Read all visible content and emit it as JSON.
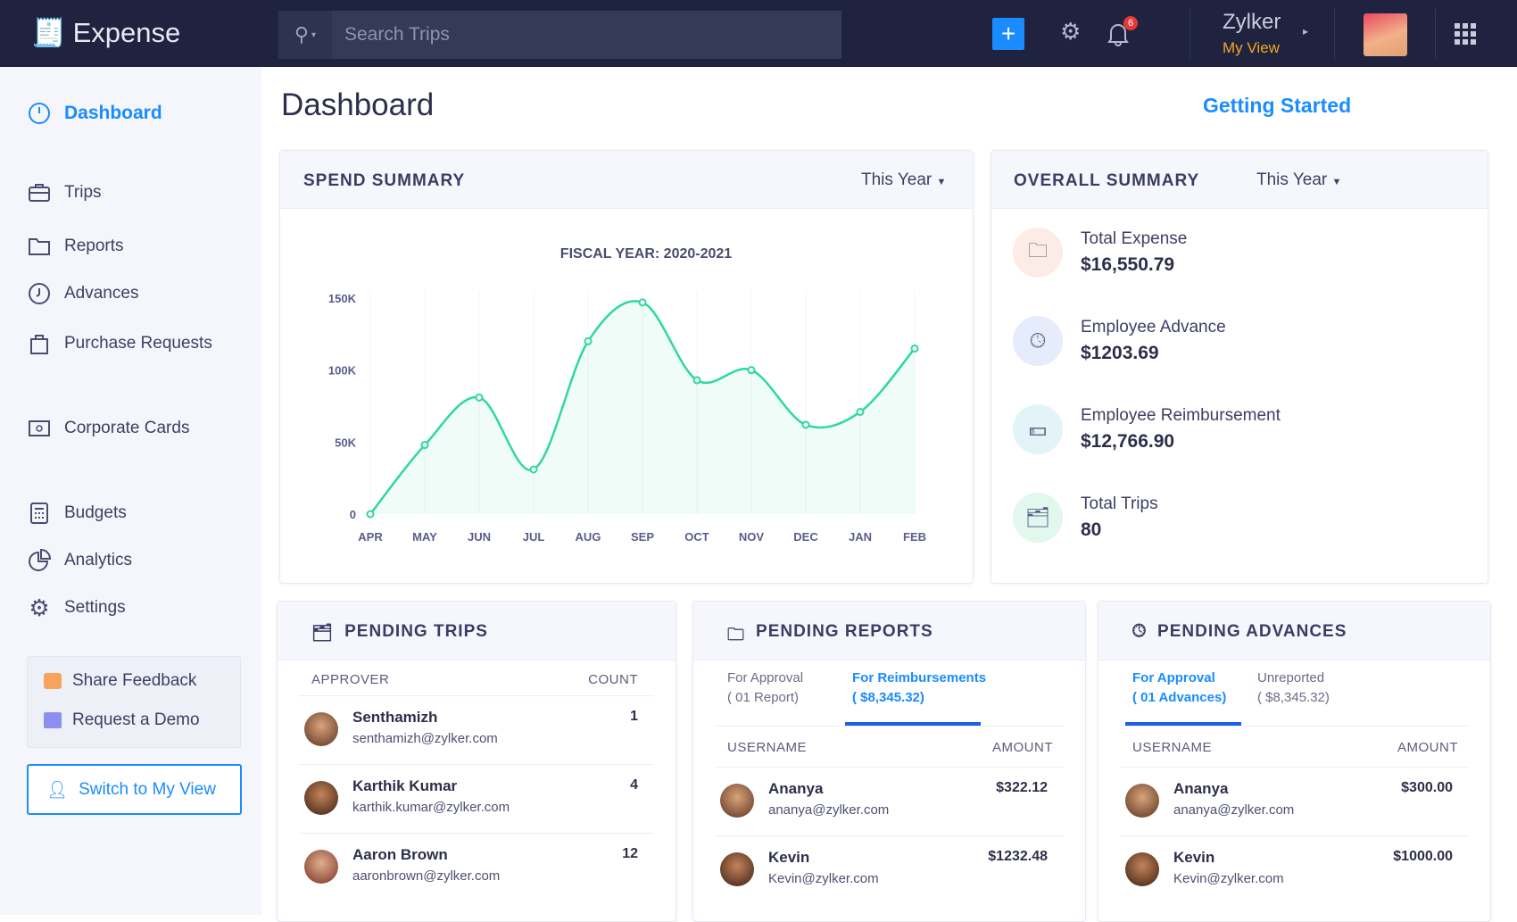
{
  "header": {
    "app_name": "Expense",
    "search_placeholder": "Search Trips",
    "notification_count": "6",
    "org_name": "Zylker",
    "view_label": "My View"
  },
  "sidebar": {
    "items": [
      {
        "label": "Dashboard",
        "icon": "dashboard-icon"
      },
      {
        "label": "Trips",
        "icon": "briefcase-icon"
      },
      {
        "label": "Reports",
        "icon": "folder-icon"
      },
      {
        "label": "Advances",
        "icon": "clock-icon"
      },
      {
        "label": "Purchase Requests",
        "icon": "bag-icon"
      },
      {
        "label": "Corporate Cards",
        "icon": "card-icon"
      },
      {
        "label": "Budgets",
        "icon": "calculator-icon"
      },
      {
        "label": "Analytics",
        "icon": "pie-chart-icon"
      },
      {
        "label": "Settings",
        "icon": "gear-icon"
      }
    ],
    "share_feedback": "Share Feedback",
    "request_demo": "Request a Demo",
    "switch_view": "Switch to My View"
  },
  "main": {
    "title": "Dashboard",
    "getting_started": "Getting Started"
  },
  "spend_summary": {
    "title": "SPEND SUMMARY",
    "period": "This Year"
  },
  "chart_data": {
    "type": "area",
    "title": "FISCAL YEAR: 2020-2021",
    "categories": [
      "APR",
      "MAY",
      "JUN",
      "JUL",
      "AUG",
      "SEP",
      "OCT",
      "NOV",
      "DEC",
      "JAN",
      "FEB"
    ],
    "values": [
      0,
      48000,
      81000,
      31000,
      120000,
      147000,
      93000,
      100000,
      62000,
      71000,
      115000
    ],
    "ylim": [
      0,
      150000
    ],
    "yticks": [
      "0",
      "50K",
      "100K",
      "150K"
    ],
    "ytick_values": [
      0,
      50000,
      100000,
      150000
    ],
    "color": "#2ed8a0",
    "grid": true
  },
  "overall_summary": {
    "title": "OVERALL SUMMARY",
    "period": "This Year",
    "items": [
      {
        "label": "Total Expense",
        "value": "$16,550.79",
        "icon": "folder-icon",
        "bg": "#fdece6"
      },
      {
        "label": "Employee Advance",
        "value": "$1203.69",
        "icon": "clock-icon",
        "bg": "#e6ecfb"
      },
      {
        "label": "Employee Reimbursement",
        "value": "$12,766.90",
        "icon": "cash-icon",
        "bg": "#e2f4f8"
      },
      {
        "label": "Total Trips",
        "value": "80",
        "icon": "briefcase-icon",
        "bg": "#e2f7ee"
      }
    ]
  },
  "pending_trips": {
    "title": "PENDING TRIPS",
    "col1": "APPROVER",
    "col2": "COUNT",
    "rows": [
      {
        "name": "Senthamizh",
        "email": "senthamizh@zylker.com",
        "value": "1"
      },
      {
        "name": "Karthik Kumar",
        "email": "karthik.kumar@zylker.com",
        "value": "4"
      },
      {
        "name": "Aaron Brown",
        "email": "aaronbrown@zylker.com",
        "value": "12"
      }
    ]
  },
  "pending_reports": {
    "title": "PENDING REPORTS",
    "tabs": [
      {
        "label": "For Approval",
        "sub": "( 01 Report)",
        "active": false
      },
      {
        "label": "For Reimbursements",
        "sub": "( $8,345.32)",
        "active": true
      }
    ],
    "col1": "USERNAME",
    "col2": "AMOUNT",
    "rows": [
      {
        "name": "Ananya",
        "email": "ananya@zylker.com",
        "value": "$322.12"
      },
      {
        "name": "Kevin",
        "email": "Kevin@zylker.com",
        "value": "$1232.48"
      }
    ]
  },
  "pending_advances": {
    "title": "PENDING ADVANCES",
    "tabs": [
      {
        "label": "For Approval",
        "sub": "( 01 Advances)",
        "active": true
      },
      {
        "label": "Unreported",
        "sub": "( $8,345.32)",
        "active": false
      }
    ],
    "col1": "USERNAME",
    "col2": "AMOUNT",
    "rows": [
      {
        "name": "Ananya",
        "email": "ananya@zylker.com",
        "value": "$300.00"
      },
      {
        "name": "Kevin",
        "email": "Kevin@zylker.com",
        "value": "$1000.00"
      }
    ]
  }
}
